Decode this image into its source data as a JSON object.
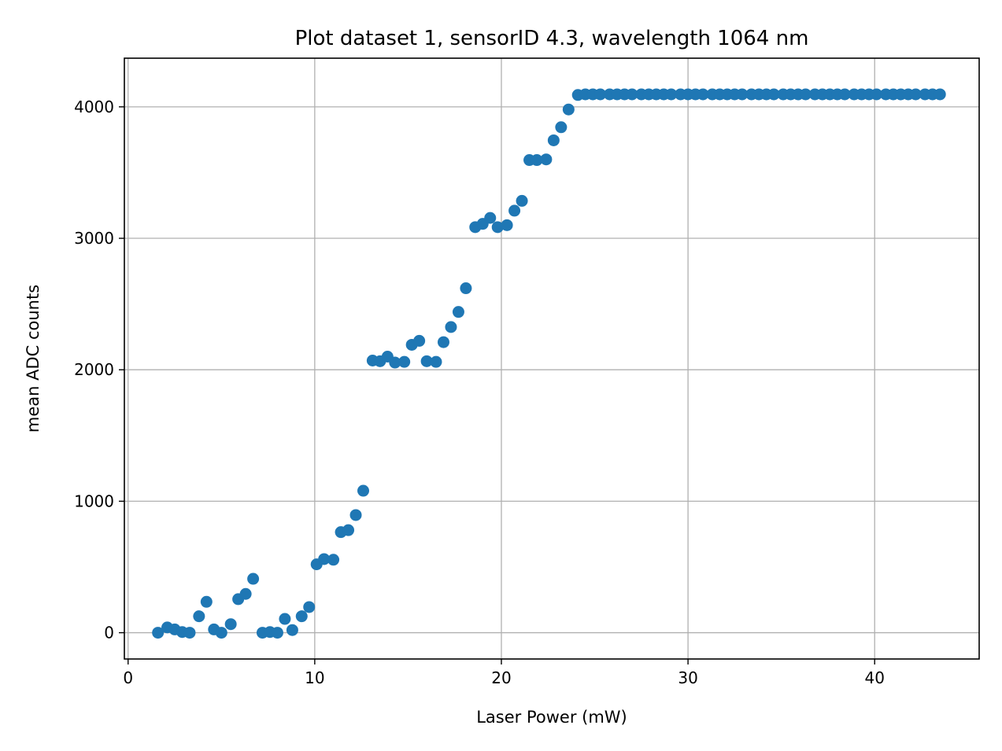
{
  "chart_data": {
    "type": "scatter",
    "title": "Plot dataset 1, sensorID 4.3, wavelength 1064 nm",
    "xlabel": "Laser Power (mW)",
    "ylabel": "mean ADC counts",
    "xlim": [
      -0.2,
      45.6
    ],
    "ylim": [
      -200,
      4370
    ],
    "xticks": [
      0,
      10,
      20,
      30,
      40
    ],
    "yticks": [
      0,
      1000,
      2000,
      3000,
      4000
    ],
    "grid": true,
    "marker_color": "#1f77b4",
    "x": [
      1.6,
      2.1,
      2.5,
      2.9,
      3.3,
      3.8,
      4.2,
      4.6,
      5.0,
      5.5,
      5.9,
      6.3,
      6.7,
      7.2,
      7.6,
      8.0,
      8.4,
      8.8,
      9.3,
      9.7,
      10.1,
      10.5,
      11.0,
      11.4,
      11.8,
      12.2,
      12.6,
      13.1,
      13.5,
      13.9,
      14.3,
      14.8,
      15.2,
      15.6,
      16.0,
      16.5,
      16.9,
      17.3,
      17.7,
      18.1,
      18.6,
      19.0,
      19.4,
      19.8,
      20.3,
      20.7,
      21.1,
      21.5,
      21.9,
      22.4,
      22.8,
      23.2,
      23.6,
      24.1,
      24.5,
      24.9,
      25.3,
      25.8,
      26.2,
      26.6,
      27.0,
      27.5,
      27.9,
      28.3,
      28.7,
      29.1,
      29.6,
      30.0,
      30.4,
      30.8,
      31.3,
      31.7,
      32.1,
      32.5,
      32.9,
      33.4,
      33.8,
      34.2,
      34.6,
      35.1,
      35.5,
      35.9,
      36.3,
      36.8,
      37.2,
      37.6,
      38.0,
      38.4,
      38.9,
      39.3,
      39.7,
      40.1,
      40.6,
      41.0,
      41.4,
      41.8,
      42.2,
      42.7,
      43.1,
      43.5
    ],
    "y": [
      0,
      40,
      25,
      5,
      0,
      125,
      235,
      25,
      0,
      65,
      255,
      295,
      410,
      0,
      5,
      0,
      105,
      20,
      125,
      195,
      520,
      560,
      555,
      765,
      780,
      895,
      1080,
      2070,
      2065,
      2100,
      2055,
      2060,
      2190,
      2220,
      2065,
      2060,
      2210,
      2325,
      2440,
      2620,
      3085,
      3110,
      3155,
      3085,
      3100,
      3210,
      3285,
      3595,
      3595,
      3600,
      3745,
      3845,
      3980,
      4090,
      4095,
      4095,
      4095,
      4095,
      4095,
      4095,
      4095,
      4095,
      4095,
      4095,
      4095,
      4095,
      4095,
      4095,
      4095,
      4095,
      4095,
      4095,
      4095,
      4095,
      4095,
      4095,
      4095,
      4095,
      4095,
      4095,
      4095,
      4095,
      4095,
      4095,
      4095,
      4095,
      4095,
      4095,
      4095,
      4095,
      4095,
      4095,
      4095,
      4095,
      4095,
      4095,
      4095,
      4095,
      4095,
      4095
    ]
  }
}
